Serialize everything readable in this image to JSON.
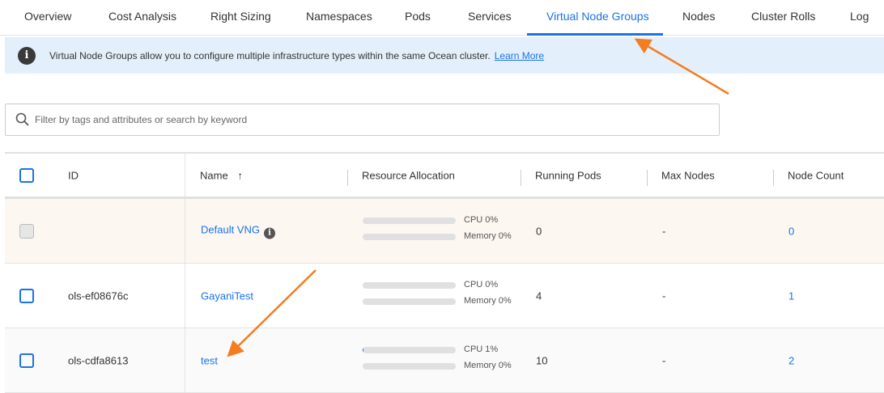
{
  "tabs": [
    "Overview",
    "Cost Analysis",
    "Right Sizing",
    "Namespaces",
    "Pods",
    "Services",
    "Virtual Node Groups",
    "Nodes",
    "Cluster Rolls",
    "Log"
  ],
  "active_tab": "Virtual Node Groups",
  "banner": {
    "text": "Virtual Node Groups allow you to configure multiple infrastructure types within the same Ocean cluster.",
    "link": "Learn More"
  },
  "search": {
    "placeholder": "Filter by tags and attributes or search by keyword"
  },
  "table": {
    "headers": {
      "id": "ID",
      "name": "Name",
      "resource": "Resource Allocation",
      "pods": "Running Pods",
      "max": "Max Nodes",
      "count": "Node Count"
    },
    "rows": [
      {
        "id": "",
        "name": "Default VNG",
        "cpu": "CPU 0%",
        "cpu_pct": 0,
        "mem": "Memory 0%",
        "mem_pct": 0,
        "pods": "0",
        "max": "-",
        "count": "0"
      },
      {
        "id": "ols-ef08676c",
        "name": "GayaniTest",
        "cpu": "CPU 0%",
        "cpu_pct": 0,
        "mem": "Memory 0%",
        "mem_pct": 0,
        "pods": "4",
        "max": "-",
        "count": "1"
      },
      {
        "id": "ols-cdfa8613",
        "name": "test",
        "cpu": "CPU 1%",
        "cpu_pct": 1,
        "mem": "Memory 0%",
        "mem_pct": 0,
        "pods": "10",
        "max": "-",
        "count": "2"
      }
    ]
  },
  "colors": {
    "accent": "#1a73e8",
    "annotation_arrow": "#f57c1f",
    "default_row_bg": "#fdf7f1"
  }
}
